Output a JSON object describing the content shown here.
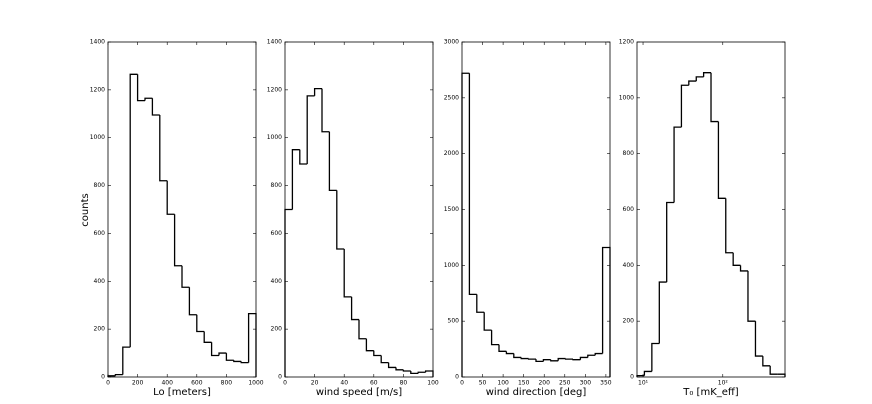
{
  "chart_data": [
    {
      "type": "histogram",
      "xlabel": "Lo [meters]",
      "ylabel": "counts",
      "color": "#000000",
      "bins": [
        0,
        50,
        100,
        150,
        200,
        250,
        300,
        350,
        400,
        450,
        500,
        550,
        600,
        650,
        700,
        750,
        800,
        850,
        900,
        950,
        1000
      ],
      "values": [
        5,
        10,
        125,
        1265,
        1155,
        1165,
        1095,
        820,
        680,
        465,
        375,
        260,
        190,
        145,
        90,
        100,
        70,
        65,
        60,
        265
      ],
      "xlim": [
        0,
        1000
      ],
      "xticks": [
        0,
        200,
        400,
        600,
        800,
        1000
      ],
      "ylim": [
        0,
        1400
      ],
      "yticks": [
        0,
        200,
        400,
        600,
        800,
        1000,
        1200,
        1400
      ]
    },
    {
      "type": "histogram",
      "xlabel": "wind speed [m/s]",
      "color": "#000000",
      "bins": [
        0,
        5,
        10,
        15,
        20,
        25,
        30,
        35,
        40,
        45,
        50,
        55,
        60,
        65,
        70,
        75,
        80,
        85,
        90,
        95,
        100
      ],
      "values": [
        700,
        950,
        890,
        1175,
        1205,
        1025,
        780,
        535,
        335,
        240,
        160,
        110,
        90,
        60,
        40,
        30,
        25,
        15,
        20,
        25
      ],
      "xlim": [
        0,
        100
      ],
      "xticks": [
        0,
        20,
        40,
        60,
        80,
        100
      ],
      "ylim": [
        0,
        1400
      ],
      "yticks": [
        0,
        200,
        400,
        600,
        800,
        1000,
        1200,
        1400
      ]
    },
    {
      "type": "histogram",
      "xlabel": "wind direction [deg]",
      "color": "#000000",
      "bins": [
        0,
        18,
        36,
        54,
        72,
        90,
        108,
        126,
        144,
        162,
        180,
        198,
        216,
        234,
        252,
        270,
        288,
        306,
        324,
        342,
        360
      ],
      "values": [
        2720,
        740,
        580,
        420,
        290,
        230,
        210,
        175,
        165,
        160,
        140,
        155,
        145,
        165,
        160,
        155,
        175,
        195,
        210,
        1160
      ],
      "xlim": [
        0,
        360
      ],
      "xticks": [
        0,
        50,
        100,
        150,
        200,
        250,
        300,
        350
      ],
      "ylim": [
        0,
        3000
      ],
      "yticks": [
        0,
        500,
        1000,
        1500,
        2000,
        2500,
        3000
      ]
    },
    {
      "type": "histogram",
      "xlabel": "T₀ [mK_eff]",
      "color": "#000000",
      "xscale": "log",
      "bins": [
        8.4,
        10.4,
        12.9,
        16.0,
        19.8,
        24.5,
        30.3,
        37.5,
        46.5,
        57.5,
        71.2,
        88.2,
        109,
        135,
        167,
        207,
        257,
        318,
        393,
        487,
        603
      ],
      "values": [
        5,
        20,
        120,
        340,
        625,
        895,
        1045,
        1060,
        1075,
        1090,
        915,
        640,
        445,
        400,
        380,
        200,
        75,
        40,
        10,
        10
      ],
      "xlim": [
        8.4,
        603
      ],
      "xticks": [
        {
          "value": 10,
          "label": "10¹"
        },
        {
          "value": 100,
          "label": "10²"
        }
      ],
      "ylim": [
        0,
        1200
      ],
      "yticks": [
        0,
        200,
        400,
        600,
        800,
        1000,
        1200
      ]
    }
  ]
}
